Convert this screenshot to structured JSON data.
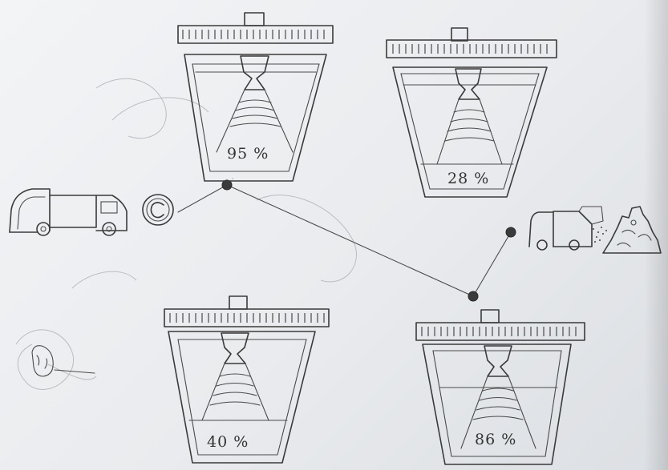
{
  "bins": [
    {
      "id": "top-left",
      "fill_percent": 95,
      "label": "95 %"
    },
    {
      "id": "top-right",
      "fill_percent": 28,
      "label": "28 %"
    },
    {
      "id": "bottom-left",
      "fill_percent": 40,
      "label": "40 %"
    },
    {
      "id": "bottom-right",
      "fill_percent": 86,
      "label": "86 %"
    }
  ],
  "colors": {
    "paper": "#eceef1",
    "pencil": "#3a3a3a"
  }
}
